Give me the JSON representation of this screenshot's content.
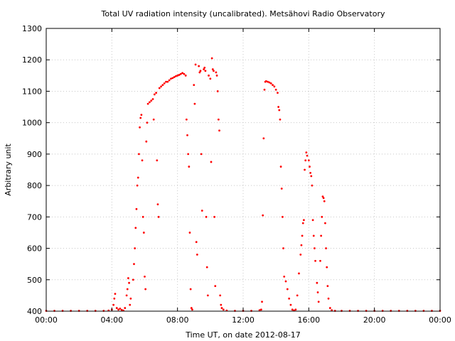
{
  "chart_data": {
    "type": "scatter",
    "title": "Total UV radiation intensity (uncalibrated). Metsähovi Radio Observatory",
    "xlabel": "Time UT, on date 2012-08-17",
    "ylabel": "Arbitrary unit",
    "x_unit": "hours UT",
    "xlim": [
      0,
      24
    ],
    "ylim": [
      400,
      1300
    ],
    "x_ticks": [
      0,
      4,
      8,
      12,
      16,
      20,
      24
    ],
    "x_tick_labels": [
      "00:00",
      "04:00",
      "08:00",
      "12:00",
      "16:00",
      "20:00",
      "00:00"
    ],
    "y_ticks": [
      400,
      500,
      600,
      700,
      800,
      900,
      1000,
      1100,
      1200,
      1300
    ],
    "y_tick_labels": [
      "400",
      "500",
      "600",
      "700",
      "800",
      "900",
      "1000",
      "1100",
      "1200",
      "1300"
    ],
    "grid": true,
    "colors": {
      "points": "#ff0000",
      "grid": "#c8c8c8",
      "axes": "#000000"
    },
    "series": [
      {
        "points": [
          [
            0.0,
            401
          ],
          [
            0.5,
            401
          ],
          [
            1.0,
            401
          ],
          [
            1.5,
            401
          ],
          [
            2.0,
            401
          ],
          [
            2.5,
            401
          ],
          [
            3.0,
            401
          ],
          [
            3.5,
            401
          ],
          [
            3.8,
            402
          ],
          [
            4.0,
            405
          ],
          [
            4.1,
            420
          ],
          [
            4.15,
            440
          ],
          [
            4.2,
            455
          ],
          [
            4.3,
            410
          ],
          [
            4.4,
            405
          ],
          [
            4.5,
            408
          ],
          [
            4.6,
            404
          ],
          [
            4.7,
            402
          ],
          [
            4.8,
            410
          ],
          [
            4.9,
            450
          ],
          [
            4.95,
            470
          ],
          [
            5.0,
            505
          ],
          [
            5.05,
            490
          ],
          [
            5.1,
            420
          ],
          [
            5.15,
            440
          ],
          [
            5.3,
            500
          ],
          [
            5.35,
            550
          ],
          [
            5.4,
            600
          ],
          [
            5.45,
            665
          ],
          [
            5.5,
            725
          ],
          [
            5.55,
            800
          ],
          [
            5.6,
            825
          ],
          [
            5.65,
            900
          ],
          [
            5.7,
            985
          ],
          [
            5.75,
            1015
          ],
          [
            5.8,
            1025
          ],
          [
            5.85,
            880
          ],
          [
            5.9,
            700
          ],
          [
            5.95,
            650
          ],
          [
            6.0,
            510
          ],
          [
            6.05,
            470
          ],
          [
            6.1,
            940
          ],
          [
            6.15,
            1000
          ],
          [
            6.2,
            1060
          ],
          [
            6.3,
            1065
          ],
          [
            6.4,
            1070
          ],
          [
            6.5,
            1075
          ],
          [
            6.55,
            1010
          ],
          [
            6.6,
            1090
          ],
          [
            6.7,
            1095
          ],
          [
            6.75,
            880
          ],
          [
            6.8,
            740
          ],
          [
            6.85,
            700
          ],
          [
            6.9,
            1110
          ],
          [
            7.0,
            1115
          ],
          [
            7.1,
            1120
          ],
          [
            7.2,
            1125
          ],
          [
            7.3,
            1130
          ],
          [
            7.4,
            1130
          ],
          [
            7.5,
            1135
          ],
          [
            7.6,
            1140
          ],
          [
            7.7,
            1142
          ],
          [
            7.8,
            1145
          ],
          [
            7.9,
            1148
          ],
          [
            8.0,
            1150
          ],
          [
            8.1,
            1152
          ],
          [
            8.2,
            1155
          ],
          [
            8.3,
            1158
          ],
          [
            8.4,
            1155
          ],
          [
            8.5,
            1150
          ],
          [
            8.55,
            1010
          ],
          [
            8.6,
            960
          ],
          [
            8.65,
            900
          ],
          [
            8.7,
            860
          ],
          [
            8.75,
            650
          ],
          [
            8.8,
            470
          ],
          [
            8.85,
            410
          ],
          [
            8.9,
            405
          ],
          [
            9.0,
            1120
          ],
          [
            9.05,
            1060
          ],
          [
            9.1,
            1185
          ],
          [
            9.15,
            620
          ],
          [
            9.2,
            580
          ],
          [
            9.3,
            1180
          ],
          [
            9.35,
            1160
          ],
          [
            9.4,
            1165
          ],
          [
            9.45,
            900
          ],
          [
            9.5,
            720
          ],
          [
            9.6,
            1170
          ],
          [
            9.65,
            1175
          ],
          [
            9.7,
            1165
          ],
          [
            9.75,
            700
          ],
          [
            9.8,
            540
          ],
          [
            9.85,
            450
          ],
          [
            9.9,
            1150
          ],
          [
            10.0,
            1140
          ],
          [
            10.05,
            875
          ],
          [
            10.1,
            1205
          ],
          [
            10.15,
            1170
          ],
          [
            10.2,
            1165
          ],
          [
            10.25,
            700
          ],
          [
            10.3,
            480
          ],
          [
            10.35,
            1160
          ],
          [
            10.4,
            1150
          ],
          [
            10.45,
            1100
          ],
          [
            10.5,
            1010
          ],
          [
            10.55,
            975
          ],
          [
            10.6,
            450
          ],
          [
            10.65,
            420
          ],
          [
            10.7,
            410
          ],
          [
            10.8,
            405
          ],
          [
            11.0,
            402
          ],
          [
            11.5,
            401
          ],
          [
            12.0,
            401
          ],
          [
            12.5,
            401
          ],
          [
            13.0,
            403
          ],
          [
            13.1,
            405
          ],
          [
            13.15,
            430
          ],
          [
            13.2,
            705
          ],
          [
            13.25,
            950
          ],
          [
            13.3,
            1105
          ],
          [
            13.35,
            1130
          ],
          [
            13.4,
            1132
          ],
          [
            13.5,
            1130
          ],
          [
            13.6,
            1128
          ],
          [
            13.7,
            1125
          ],
          [
            13.8,
            1120
          ],
          [
            13.9,
            1115
          ],
          [
            14.0,
            1105
          ],
          [
            14.1,
            1095
          ],
          [
            14.15,
            1050
          ],
          [
            14.2,
            1040
          ],
          [
            14.25,
            1010
          ],
          [
            14.3,
            860
          ],
          [
            14.35,
            790
          ],
          [
            14.4,
            700
          ],
          [
            14.45,
            600
          ],
          [
            14.5,
            510
          ],
          [
            14.6,
            495
          ],
          [
            14.7,
            470
          ],
          [
            14.8,
            440
          ],
          [
            14.9,
            420
          ],
          [
            15.0,
            405
          ],
          [
            15.1,
            402
          ],
          [
            15.2,
            405
          ],
          [
            15.3,
            450
          ],
          [
            15.4,
            520
          ],
          [
            15.5,
            580
          ],
          [
            15.55,
            610
          ],
          [
            15.6,
            640
          ],
          [
            15.65,
            680
          ],
          [
            15.7,
            690
          ],
          [
            15.75,
            850
          ],
          [
            15.8,
            880
          ],
          [
            15.85,
            905
          ],
          [
            15.9,
            895
          ],
          [
            16.0,
            880
          ],
          [
            16.05,
            860
          ],
          [
            16.1,
            840
          ],
          [
            16.15,
            830
          ],
          [
            16.2,
            800
          ],
          [
            16.25,
            690
          ],
          [
            16.3,
            640
          ],
          [
            16.35,
            600
          ],
          [
            16.4,
            560
          ],
          [
            16.5,
            490
          ],
          [
            16.55,
            460
          ],
          [
            16.6,
            430
          ],
          [
            16.7,
            560
          ],
          [
            16.75,
            640
          ],
          [
            16.8,
            700
          ],
          [
            16.85,
            765
          ],
          [
            16.9,
            760
          ],
          [
            16.95,
            750
          ],
          [
            17.0,
            680
          ],
          [
            17.05,
            600
          ],
          [
            17.1,
            540
          ],
          [
            17.15,
            480
          ],
          [
            17.2,
            440
          ],
          [
            17.3,
            410
          ],
          [
            17.4,
            403
          ],
          [
            17.6,
            401
          ],
          [
            18.0,
            401
          ],
          [
            18.5,
            401
          ],
          [
            19.0,
            401
          ],
          [
            19.5,
            401
          ],
          [
            20.0,
            401
          ],
          [
            20.5,
            401
          ],
          [
            21.0,
            401
          ],
          [
            21.5,
            401
          ],
          [
            22.0,
            401
          ],
          [
            22.5,
            401
          ],
          [
            23.0,
            401
          ],
          [
            23.5,
            401
          ],
          [
            24.0,
            401
          ]
        ]
      }
    ]
  }
}
